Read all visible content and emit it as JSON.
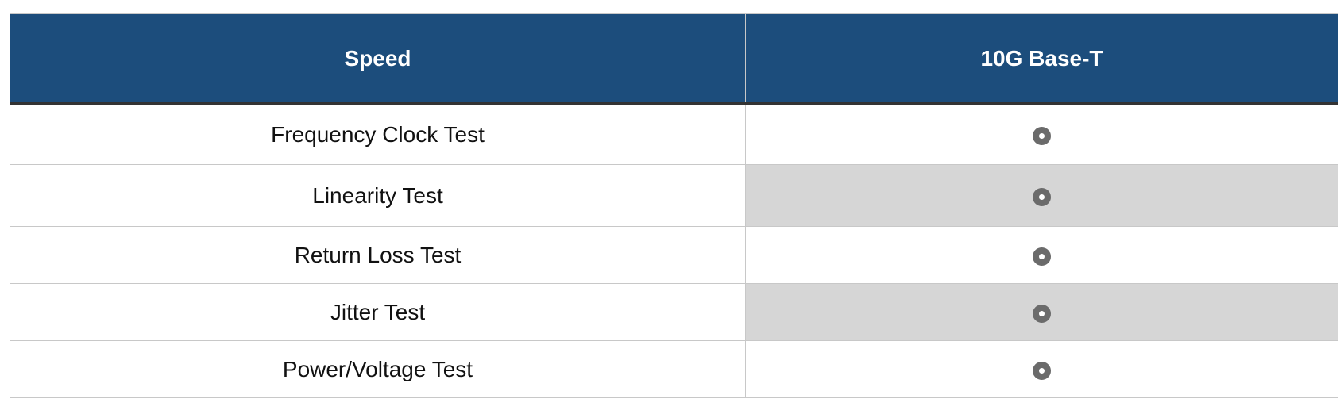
{
  "table": {
    "headers": [
      "Speed",
      "10G Base-T"
    ],
    "rows": [
      {
        "label": "Frequency Clock Test",
        "supported": true,
        "icon": "circle-dot-icon"
      },
      {
        "label": "Linearity Test",
        "supported": true,
        "icon": "circle-dot-icon"
      },
      {
        "label": "Return Loss Test",
        "supported": true,
        "icon": "circle-dot-icon"
      },
      {
        "label": "Jitter Test",
        "supported": true,
        "icon": "circle-dot-icon"
      },
      {
        "label": "Power/Voltage Test",
        "supported": true,
        "icon": "circle-dot-icon"
      }
    ],
    "colors": {
      "header_bg": "#1c4d7c",
      "alt_row_bg": "#d6d6d6",
      "icon": "#6b6b6b"
    }
  }
}
